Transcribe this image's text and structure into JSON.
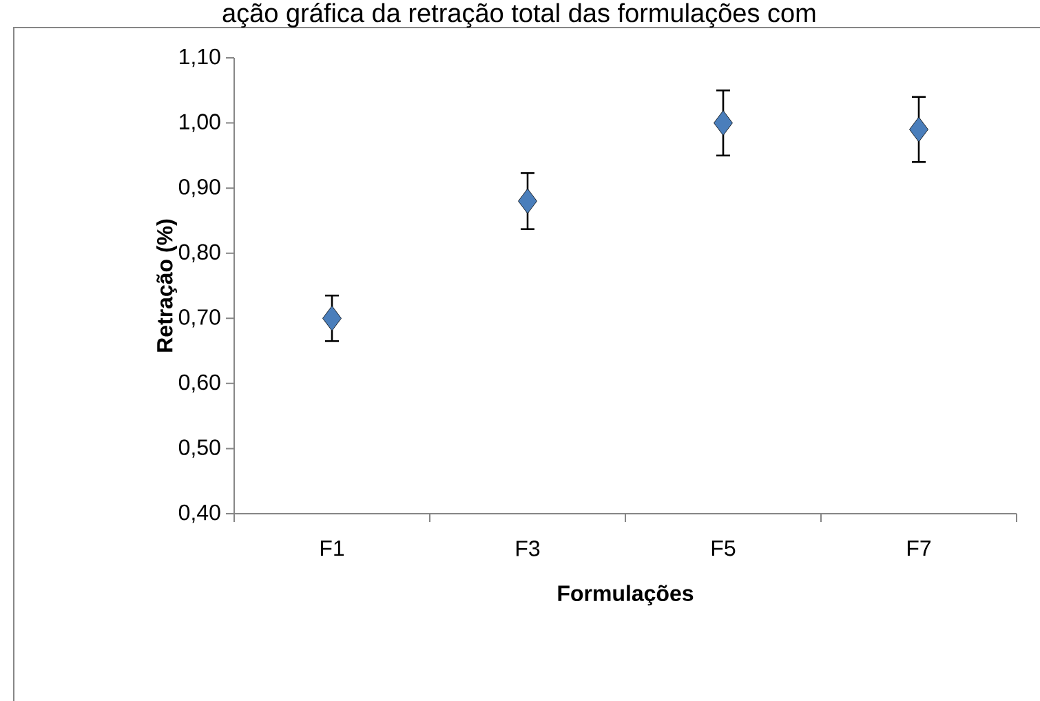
{
  "chart_data": {
    "type": "scatter",
    "annotations": [
      "ação gráfica da retração total das formulações com"
    ],
    "xlabel": "Formulações",
    "ylabel": "Retração (%)",
    "categories": [
      "F1",
      "F3",
      "F5",
      "F7"
    ],
    "values": [
      0.7,
      0.88,
      1.0,
      0.99
    ],
    "errors": [
      0.035,
      0.043,
      0.05,
      0.05
    ],
    "color": "#4a7ebb",
    "marker": "diamond",
    "grid": false,
    "ylim": [
      0.4,
      1.1
    ],
    "yticks": [
      {
        "value": 0.4,
        "label": "0,40"
      },
      {
        "value": 0.5,
        "label": "0,50"
      },
      {
        "value": 0.6,
        "label": "0,60"
      },
      {
        "value": 0.7,
        "label": "0,70"
      },
      {
        "value": 0.8,
        "label": "0,80"
      },
      {
        "value": 0.9,
        "label": "0,90"
      },
      {
        "value": 1.0,
        "label": "1,00"
      },
      {
        "value": 1.1,
        "label": "1,10"
      }
    ]
  }
}
